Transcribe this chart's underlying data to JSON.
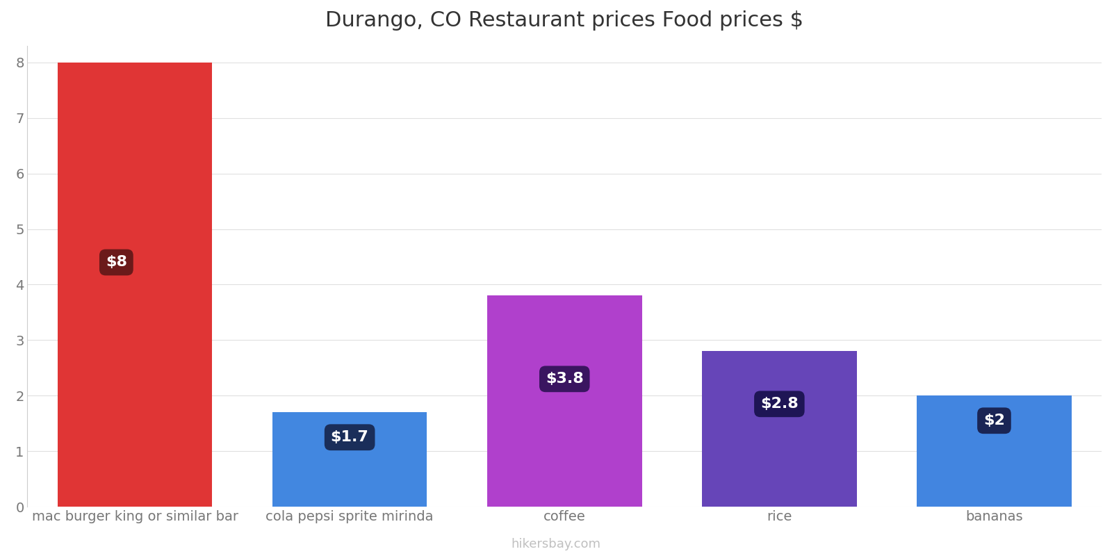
{
  "title": "Durango, CO Restaurant prices Food prices $",
  "categories": [
    "mac burger king or similar bar",
    "cola pepsi sprite mirinda",
    "coffee",
    "rice",
    "bananas"
  ],
  "values": [
    8.0,
    1.7,
    3.8,
    2.8,
    2.0
  ],
  "bar_colors": [
    "#e03535",
    "#4287e0",
    "#b040cc",
    "#6645b8",
    "#4285e0"
  ],
  "label_texts": [
    "$8",
    "$1.7",
    "$3.8",
    "$2.8",
    "$2"
  ],
  "label_box_colors": [
    "#6b1a1a",
    "#1a2e5a",
    "#3a1560",
    "#1e1555",
    "#1a2555"
  ],
  "ylim": [
    0,
    8.3
  ],
  "yticks": [
    0,
    1,
    2,
    3,
    4,
    5,
    6,
    7,
    8
  ],
  "title_fontsize": 22,
  "tick_fontsize": 14,
  "label_fontsize": 16,
  "watermark": "hikersbay.com",
  "background_color": "#ffffff",
  "label_y_positions": [
    4.4,
    1.25,
    2.3,
    1.85,
    1.55
  ],
  "label_x_offsets": [
    -0.12,
    0.0,
    0.0,
    0.0,
    0.0
  ],
  "bar_width": 0.72
}
